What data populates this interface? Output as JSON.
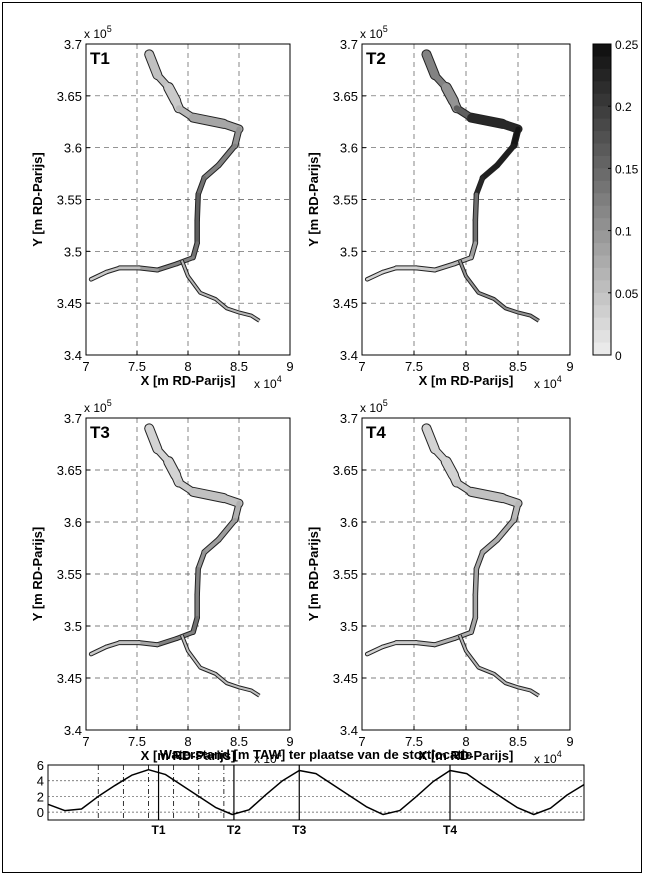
{
  "chart_data": [
    {
      "type": "heatmap",
      "panel_label": "T1",
      "xlabel": "X [m RD-Parijs]",
      "ylabel": "Y [m RD-Parijs]",
      "x_multiplier": "x 10",
      "x_exponent": "4",
      "y_multiplier": "x 10",
      "y_exponent": "5",
      "xlim": [
        70000,
        90000
      ],
      "ylim": [
        340000,
        370000
      ],
      "x_ticks": [
        7,
        7.5,
        8,
        8.5,
        9
      ],
      "y_ticks": [
        3.4,
        3.45,
        3.5,
        3.55,
        3.6,
        3.65,
        3.7
      ],
      "grid": true,
      "colorbar": true
    },
    {
      "type": "heatmap",
      "panel_label": "T2",
      "xlabel": "X [m RD-Parijs]",
      "ylabel": "Y [m RD-Parijs]",
      "x_multiplier": "x 10",
      "x_exponent": "4",
      "y_multiplier": "x 10",
      "y_exponent": "5",
      "xlim": [
        70000,
        90000
      ],
      "ylim": [
        340000,
        370000
      ],
      "x_ticks": [
        7,
        7.5,
        8,
        8.5,
        9
      ],
      "y_ticks": [
        3.4,
        3.45,
        3.5,
        3.55,
        3.6,
        3.65,
        3.7
      ],
      "grid": true,
      "colorbar": true
    },
    {
      "type": "heatmap",
      "panel_label": "T3",
      "xlabel": "X [m RD-Parijs]",
      "ylabel": "Y [m RD-Parijs]",
      "x_multiplier": "x 10",
      "x_exponent": "4",
      "y_multiplier": "x 10",
      "y_exponent": "5",
      "xlim": [
        70000,
        90000
      ],
      "ylim": [
        340000,
        370000
      ],
      "x_ticks": [
        7,
        7.5,
        8,
        8.5,
        9
      ],
      "y_ticks": [
        3.4,
        3.45,
        3.5,
        3.55,
        3.6,
        3.65,
        3.7
      ],
      "grid": true,
      "colorbar": true
    },
    {
      "type": "heatmap",
      "panel_label": "T4",
      "xlabel": "X [m RD-Parijs]",
      "ylabel": "Y [m RD-Parijs]",
      "x_multiplier": "x 10",
      "x_exponent": "4",
      "y_multiplier": "x 10",
      "y_exponent": "5",
      "xlim": [
        70000,
        90000
      ],
      "ylim": [
        340000,
        370000
      ],
      "x_ticks": [
        7,
        7.5,
        8,
        8.5,
        9
      ],
      "y_ticks": [
        3.4,
        3.45,
        3.5,
        3.55,
        3.6,
        3.65,
        3.7
      ],
      "grid": true,
      "colorbar": true
    },
    {
      "type": "line",
      "title": "Waterstand [m TAW] ter plaatse van de stortlocatie",
      "xlabel": "",
      "ylabel": "",
      "ylim": [
        -1,
        6
      ],
      "y_ticks": [
        0,
        2,
        4,
        6
      ],
      "grid": true,
      "series": [
        {
          "values": [
            1.0,
            0.2,
            0.4,
            2.0,
            3.4,
            4.7,
            5.4,
            4.8,
            3.4,
            2.0,
            0.6,
            -0.3,
            0.3,
            2.2,
            4.0,
            5.3,
            4.9,
            3.5,
            2.1,
            0.7,
            -0.3,
            0.2,
            2.0,
            3.9,
            5.3,
            4.9,
            3.4,
            2.0,
            0.6,
            -0.3,
            0.5,
            2.2,
            3.5
          ]
        }
      ],
      "markers": [
        {
          "label": "T1",
          "position": 6.6
        },
        {
          "label": "T2",
          "position": 11.1
        },
        {
          "label": "T3",
          "position": 15.0
        },
        {
          "label": "T4",
          "position": 24.0
        }
      ],
      "dash_lines": [
        3.0,
        4.5,
        6.0,
        7.5,
        9.0,
        10.5
      ]
    }
  ],
  "colorbar": {
    "range": [
      0,
      0.25
    ],
    "tick_labels": [
      "0.25",
      "0.2",
      "0.15",
      "0.1",
      "0.05",
      "0"
    ],
    "tick_values": [
      0.25,
      0.2,
      0.15,
      0.1,
      0.05,
      0
    ]
  },
  "panels_intensity": [
    [
      0.05,
      0.04,
      0.06,
      0.08,
      0.1,
      0.12,
      0.14,
      0.16,
      0.14,
      0.12,
      0.09,
      0.05,
      0.04
    ],
    [
      0.12,
      0.1,
      0.16,
      0.22,
      0.24,
      0.23,
      0.22,
      0.14,
      0.09,
      0.06,
      0.04,
      0.03,
      0.03
    ],
    [
      0.03,
      0.03,
      0.04,
      0.05,
      0.07,
      0.09,
      0.1,
      0.12,
      0.14,
      0.12,
      0.08,
      0.05,
      0.04
    ],
    [
      0.03,
      0.03,
      0.04,
      0.05,
      0.06,
      0.07,
      0.08,
      0.08,
      0.08,
      0.07,
      0.06,
      0.04,
      0.03
    ]
  ],
  "tributary_intensity": [
    0.06,
    0.1,
    0.05,
    0.06
  ]
}
